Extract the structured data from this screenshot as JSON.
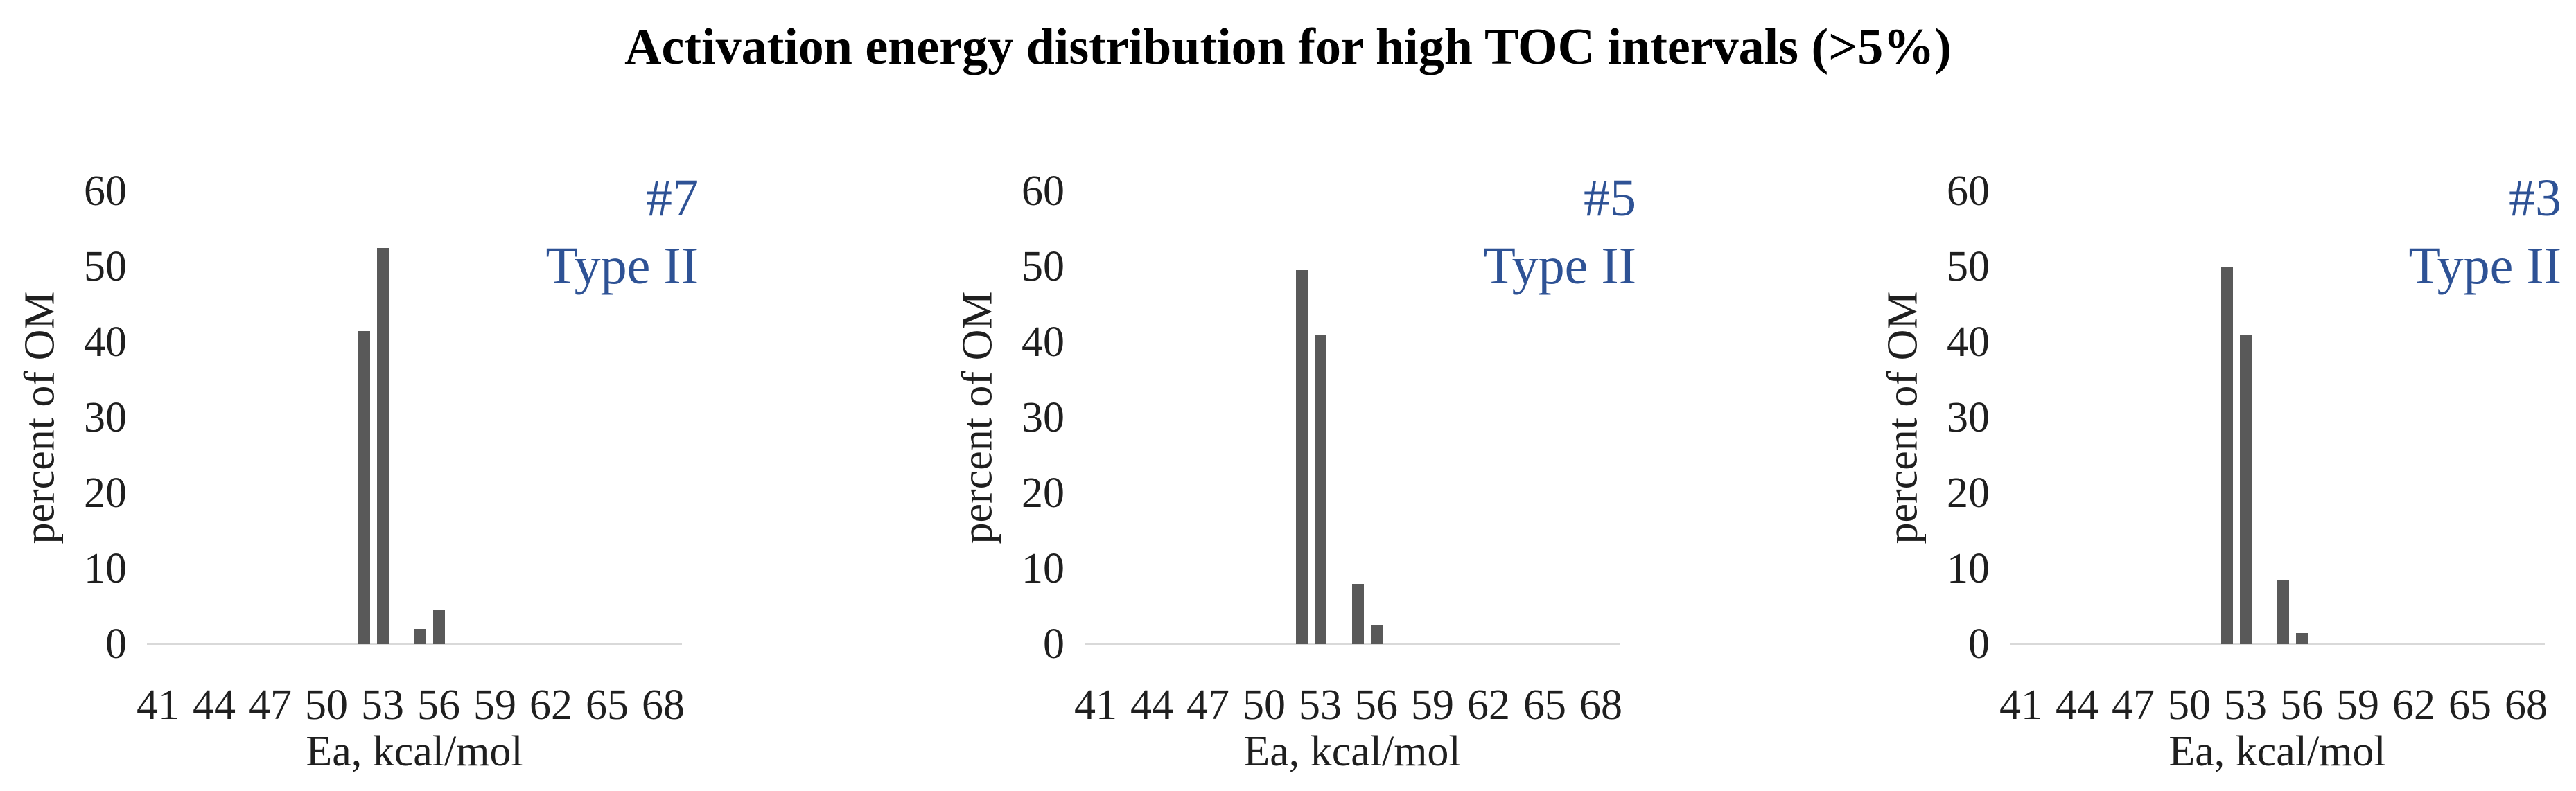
{
  "title": "Activation energy distribution for high TOC intervals (>5%)",
  "chart_data": {
    "type": "bar",
    "title": "Activation energy distribution for high TOC intervals (>5%)",
    "xlabel": "Ea, kcal/mol",
    "ylabel": "percent of OM",
    "xticks": [
      "41",
      "44",
      "47",
      "50",
      "53",
      "56",
      "59",
      "62",
      "65",
      "68"
    ],
    "yticks": [
      "0",
      "10",
      "20",
      "30",
      "40",
      "50",
      "60"
    ],
    "xlim": [
      41,
      68
    ],
    "ylim": [
      0,
      60
    ],
    "grid": false,
    "legend": "none",
    "bar_color": "#595959",
    "axis_line_color": "#d9d9d9",
    "text_color": "#1f1f1f",
    "annotation_color": "#2e5295",
    "panels": [
      {
        "sample_label": "#7",
        "kerogen_type": "Type II",
        "x": [
          52,
          53,
          55,
          56
        ],
        "values": [
          41.5,
          52.5,
          2,
          4.5
        ]
      },
      {
        "sample_label": "#5",
        "kerogen_type": "Type II",
        "x": [
          52,
          53,
          55,
          56
        ],
        "values": [
          49.5,
          41,
          8,
          2.5
        ]
      },
      {
        "sample_label": "#3",
        "kerogen_type": "Type II",
        "x": [
          52,
          53,
          55,
          56
        ],
        "values": [
          50,
          41,
          8.5,
          1.5
        ]
      }
    ]
  }
}
